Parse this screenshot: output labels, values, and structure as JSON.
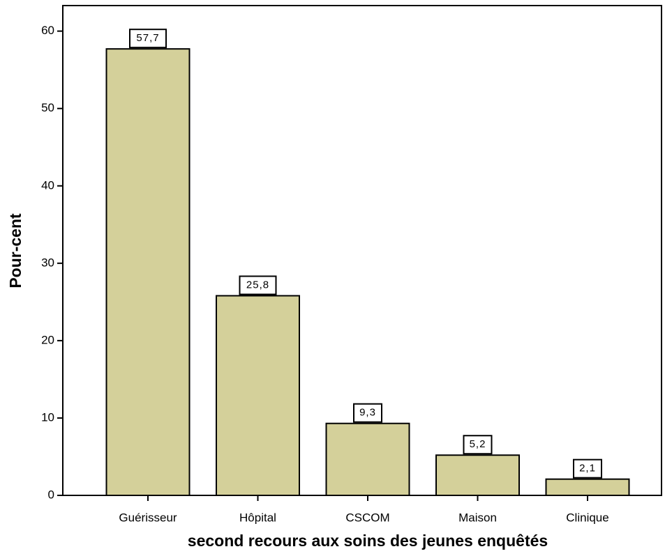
{
  "chart_data": {
    "type": "bar",
    "x_label": "second recours aux soins des jeunes enquêtés",
    "y_label": "Pour-cent",
    "categories": [
      "Guérisseur",
      "Hôpital",
      "CSCOM",
      "Maison",
      "Clinique"
    ],
    "values": [
      57.7,
      25.8,
      9.3,
      5.2,
      2.1
    ],
    "value_labels": [
      "57,7",
      "25,8",
      "9,3",
      "5,2",
      "2,1"
    ],
    "color": "#d4d09a",
    "ylim": [
      0,
      63.3
    ],
    "yticks": [
      0,
      10,
      20,
      30,
      40,
      50,
      60
    ]
  }
}
